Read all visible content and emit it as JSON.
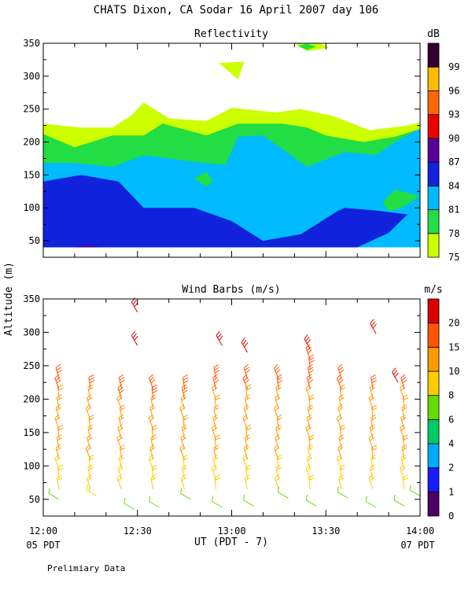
{
  "page": {
    "title": "CHATS Dixon, CA  Sodar  16 April 2007  day 106",
    "shared_ylabel": "Altitude (m)",
    "xlabel": "UT  (PDT - 7)",
    "x_left_sub": "05 PDT",
    "x_right_sub": "07 PDT",
    "footer": "Prelimiary Data"
  },
  "chart_data": [
    {
      "type": "heatmap",
      "title": "Reflectivity",
      "ylim": [
        25,
        350
      ],
      "yticks": [
        50,
        100,
        150,
        200,
        250,
        300,
        350
      ],
      "xlim": [
        0,
        120
      ],
      "xticks": [
        0,
        30,
        60,
        90,
        120
      ],
      "xtick_labels": [
        "12:00",
        "12:30",
        "13:00",
        "13:30",
        "14:00"
      ],
      "colorbar": {
        "unit": "dB",
        "levels": [
          75,
          78,
          81,
          84,
          87,
          90,
          93,
          96,
          99
        ],
        "colors": [
          "#ccff00",
          "#22dd44",
          "#00bbff",
          "#1122dd",
          "#5a0099",
          "#ee0000",
          "#ff6600",
          "#ffbb00",
          "#330033"
        ]
      },
      "regions": [
        {
          "level": 75,
          "color": "#ccff00",
          "points": [
            [
              0,
              228
            ],
            [
              12,
              222
            ],
            [
              22,
              222
            ],
            [
              28,
              240
            ],
            [
              32,
              260
            ],
            [
              40,
              236
            ],
            [
              52,
              232
            ],
            [
              60,
              252
            ],
            [
              74,
              245
            ],
            [
              82,
              250
            ],
            [
              92,
              240
            ],
            [
              104,
              218
            ],
            [
              116,
              225
            ],
            [
              120,
              230
            ],
            [
              120,
              40
            ],
            [
              0,
              40
            ]
          ]
        },
        {
          "level": 75,
          "color": "#ccff00",
          "points": [
            [
              56,
              320
            ],
            [
              64,
              322
            ],
            [
              62,
              295
            ]
          ]
        },
        {
          "level": 75,
          "color": "#ccff00",
          "points": [
            [
              80,
              350
            ],
            [
              88,
              350
            ],
            [
              91,
              343
            ],
            [
              84,
              338
            ]
          ]
        },
        {
          "level": 78,
          "color": "#22dd44",
          "points": [
            [
              0,
              212
            ],
            [
              10,
              192
            ],
            [
              22,
              210
            ],
            [
              32,
              210
            ],
            [
              38,
              228
            ],
            [
              52,
              210
            ],
            [
              62,
              228
            ],
            [
              76,
              228
            ],
            [
              84,
              222
            ],
            [
              90,
              210
            ],
            [
              102,
              200
            ],
            [
              112,
              208
            ],
            [
              120,
              220
            ],
            [
              120,
              40
            ],
            [
              0,
              40
            ]
          ]
        },
        {
          "level": 78,
          "color": "#22dd44",
          "points": [
            [
              81,
              346
            ],
            [
              84,
              349
            ],
            [
              87,
              345
            ],
            [
              84,
              340
            ]
          ]
        },
        {
          "level": 81,
          "color": "#00bbff",
          "points": [
            [
              0,
              168
            ],
            [
              10,
              168
            ],
            [
              22,
              162
            ],
            [
              32,
              180
            ],
            [
              48,
              170
            ],
            [
              58,
              165
            ],
            [
              62,
              208
            ],
            [
              70,
              210
            ],
            [
              76,
              190
            ],
            [
              84,
              162
            ],
            [
              96,
              185
            ],
            [
              106,
              180
            ],
            [
              112,
              200
            ],
            [
              120,
              220
            ],
            [
              120,
              40
            ],
            [
              0,
              40
            ]
          ]
        },
        {
          "level": 78,
          "color": "#22dd44",
          "points": [
            [
              48,
              145
            ],
            [
              52,
              155
            ],
            [
              54,
              140
            ],
            [
              52,
              132
            ]
          ]
        },
        {
          "level": 78,
          "color": "#22dd44",
          "points": [
            [
              108,
              108
            ],
            [
              112,
              128
            ],
            [
              120,
              118
            ],
            [
              114,
              100
            ],
            [
              110,
              95
            ]
          ]
        },
        {
          "level": 84,
          "color": "#1122dd",
          "points": [
            [
              0,
              140
            ],
            [
              12,
              150
            ],
            [
              24,
              140
            ],
            [
              32,
              100
            ],
            [
              48,
              100
            ],
            [
              60,
              80
            ],
            [
              70,
              50
            ],
            [
              82,
              60
            ],
            [
              94,
              96
            ],
            [
              96,
              100
            ],
            [
              106,
              96
            ],
            [
              116,
              90
            ],
            [
              110,
              62
            ],
            [
              100,
              40
            ],
            [
              0,
              40
            ]
          ]
        },
        {
          "level": 87,
          "color": "#5a0099",
          "points": [
            [
              10,
              40
            ],
            [
              14,
              44
            ],
            [
              18,
              40
            ]
          ]
        }
      ]
    },
    {
      "type": "scatter",
      "title": "Wind Barbs (m/s)",
      "ylim": [
        25,
        350
      ],
      "yticks": [
        50,
        100,
        150,
        200,
        250,
        300,
        350
      ],
      "xlim": [
        0,
        120
      ],
      "xticks": [
        0,
        30,
        60,
        90,
        120
      ],
      "xtick_labels": [
        "12:00",
        "12:30",
        "13:00",
        "13:30",
        "14:00"
      ],
      "colorbar": {
        "unit": "m/s",
        "levels": [
          0,
          1,
          2,
          4,
          6,
          8,
          10,
          15,
          20
        ],
        "colors": [
          "#4d0066",
          "#1a1aff",
          "#00aaff",
          "#00cc66",
          "#66dd00",
          "#ffcc00",
          "#ff9900",
          "#ff5500",
          "#dd0000"
        ]
      },
      "profile_times": [
        5,
        15,
        25,
        35,
        45,
        55,
        65,
        75,
        85,
        95,
        105,
        115
      ],
      "profile_top_altitudes": [
        240,
        220,
        215,
        215,
        215,
        240,
        240,
        235,
        260,
        240,
        220,
        220
      ],
      "upper_barbs": [
        {
          "t": 30,
          "alt": 330,
          "speed": 20
        },
        {
          "t": 30,
          "alt": 280,
          "speed": 20
        },
        {
          "t": 57,
          "alt": 280,
          "speed": 20
        },
        {
          "t": 65,
          "alt": 270,
          "speed": 20
        },
        {
          "t": 85,
          "alt": 275,
          "speed": 20
        },
        {
          "t": 106,
          "alt": 298,
          "speed": 20
        },
        {
          "t": 113,
          "alt": 225,
          "speed": 20
        }
      ],
      "surface_barbs": [
        {
          "t": 5,
          "alt": 50,
          "speed": 6
        },
        {
          "t": 17,
          "alt": 55,
          "speed": 8
        },
        {
          "t": 29,
          "alt": 35,
          "speed": 6
        },
        {
          "t": 37,
          "alt": 38,
          "speed": 6
        },
        {
          "t": 47,
          "alt": 50,
          "speed": 6
        },
        {
          "t": 57,
          "alt": 38,
          "speed": 6
        },
        {
          "t": 67,
          "alt": 40,
          "speed": 6
        },
        {
          "t": 78,
          "alt": 52,
          "speed": 6
        },
        {
          "t": 87,
          "alt": 40,
          "speed": 6
        },
        {
          "t": 97,
          "alt": 52,
          "speed": 6
        },
        {
          "t": 106,
          "alt": 38,
          "speed": 6
        },
        {
          "t": 115,
          "alt": 40,
          "speed": 6
        },
        {
          "t": 120,
          "alt": 55,
          "speed": 6
        }
      ]
    }
  ]
}
